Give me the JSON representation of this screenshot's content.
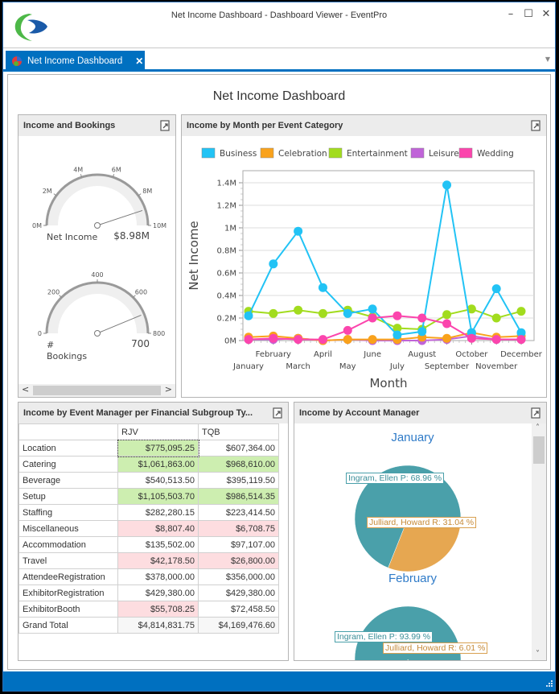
{
  "window": {
    "title": "Net Income Dashboard - Dashboard Viewer - EventPro",
    "minimize_label": "–",
    "maximize_label": "☐",
    "close_label": "✕"
  },
  "tabs": [
    {
      "label": "Net Income Dashboard",
      "close_label": "✕",
      "icon": "pie-chart-icon"
    }
  ],
  "tab_menu_label": "▼",
  "dashboard": {
    "title": "Net Income Dashboard"
  },
  "colors": {
    "accent": "#0070c0",
    "business": "#22c3f5",
    "celebration": "#f9a21c",
    "entertainment": "#a2dc1e",
    "leisure": "#c064d8",
    "wedding": "#fb45ad",
    "pie_ingram": "#4aa0aa",
    "pie_julliard": "#e6a751",
    "cell_high": "#cdeeb0",
    "cell_low": "#fddde0"
  },
  "gauges_panel": {
    "title": "Income and Bookings",
    "gauges": [
      {
        "label": "Net Income",
        "value": 8.98,
        "value_label": "$8.98M",
        "min": 0,
        "max": 10,
        "ticks": [
          "0M",
          "2M",
          "4M",
          "6M",
          "8M",
          "10M"
        ]
      },
      {
        "label_line1": "#",
        "label_line2": "Bookings",
        "value": 700,
        "value_label": "700",
        "min": 0,
        "max": 800,
        "ticks": [
          "0",
          "200",
          "400",
          "600",
          "800"
        ]
      }
    ],
    "scroll_left": "<",
    "scroll_right": ">"
  },
  "chart_data": {
    "type": "line",
    "title": "Income by Month per Event Category",
    "xlabel": "Month",
    "ylabel": "Net Income",
    "ylim": [
      0,
      1.4
    ],
    "y_unit": "M",
    "yticks": [
      "0M",
      "0.2M",
      "0.4M",
      "0.6M",
      "0.8M",
      "1M",
      "1.2M",
      "1.4M"
    ],
    "grid": true,
    "legend_position": "top",
    "categories": [
      "January",
      "February",
      "March",
      "April",
      "May",
      "June",
      "July",
      "August",
      "September",
      "October",
      "November",
      "December"
    ],
    "series": [
      {
        "name": "Business",
        "color": "#22c3f5",
        "values": [
          0.22,
          0.68,
          0.97,
          0.47,
          0.24,
          0.28,
          0.05,
          0.08,
          1.38,
          0.07,
          0.46,
          0.07
        ]
      },
      {
        "name": "Celebration",
        "color": "#f9a21c",
        "values": [
          0.03,
          0.04,
          0.02,
          0.0,
          0.01,
          0.01,
          0.01,
          0.03,
          0.02,
          0.07,
          0.03,
          0.04
        ]
      },
      {
        "name": "Entertainment",
        "color": "#a2dc1e",
        "values": [
          0.26,
          0.24,
          0.27,
          0.24,
          0.27,
          0.21,
          0.11,
          0.1,
          0.23,
          0.28,
          0.2,
          0.26
        ]
      },
      {
        "name": "Leisure",
        "color": "#c064d8",
        "values": [
          0.01,
          0.01,
          0.02,
          0.0,
          0.01,
          0.0,
          0.0,
          0.0,
          0.01,
          0.04,
          0.01,
          0.01
        ]
      },
      {
        "name": "Wedding",
        "color": "#fb45ad",
        "values": [
          0.01,
          0.02,
          0.01,
          0.01,
          0.09,
          0.2,
          0.22,
          0.2,
          0.15,
          0.02,
          0.01,
          0.01
        ]
      }
    ]
  },
  "pivot_panel": {
    "title": "Income by Event Manager per Financial Subgroup Ty...",
    "columns": [
      "RJV",
      "TQB"
    ],
    "rows": [
      {
        "label": "Location",
        "values": [
          "$775,095.25",
          "$607,364.00"
        ],
        "status": [
          "high",
          "none"
        ]
      },
      {
        "label": "Catering",
        "values": [
          "$1,061,863.00",
          "$968,610.00"
        ],
        "status": [
          "high",
          "high"
        ]
      },
      {
        "label": "Beverage",
        "values": [
          "$540,513.50",
          "$395,119.50"
        ],
        "status": [
          "none",
          "none"
        ]
      },
      {
        "label": "Setup",
        "values": [
          "$1,105,503.70",
          "$986,514.35"
        ],
        "status": [
          "high",
          "high"
        ]
      },
      {
        "label": "Staffing",
        "values": [
          "$282,280.15",
          "$223,414.50"
        ],
        "status": [
          "none",
          "none"
        ]
      },
      {
        "label": "Miscellaneous",
        "values": [
          "$8,807.40",
          "$6,708.75"
        ],
        "status": [
          "low",
          "low"
        ]
      },
      {
        "label": "Accommodation",
        "values": [
          "$135,502.00",
          "$97,107.00"
        ],
        "status": [
          "none",
          "none"
        ]
      },
      {
        "label": "Travel",
        "values": [
          "$42,178.50",
          "$26,800.00"
        ],
        "status": [
          "low",
          "low"
        ]
      },
      {
        "label": "AttendeeRegistration",
        "values": [
          "$378,000.00",
          "$356,000.00"
        ],
        "status": [
          "none",
          "none"
        ]
      },
      {
        "label": "ExhibitorRegistration",
        "values": [
          "$429,380.00",
          "$429,380.00"
        ],
        "status": [
          "none",
          "none"
        ]
      },
      {
        "label": "ExhibitorBooth",
        "values": [
          "$55,708.25",
          "$72,458.50"
        ],
        "status": [
          "low",
          "none"
        ]
      },
      {
        "label": "Grand Total",
        "values": [
          "$4,814,831.75",
          "$4,169,476.60"
        ],
        "status": [
          "total",
          "total"
        ]
      }
    ]
  },
  "pie_panel": {
    "title": "Income by Account Manager",
    "pies": [
      {
        "month": "January",
        "slices": [
          {
            "name": "Ingram, Ellen P",
            "percent": 68.96,
            "label": "Ingram, Ellen P: 68.96 %"
          },
          {
            "name": "Julliard, Howard R",
            "percent": 31.04,
            "label": "Julliard, Howard R: 31.04 %"
          }
        ]
      },
      {
        "month": "February",
        "slices": [
          {
            "name": "Ingram, Ellen P",
            "percent": 93.99,
            "label": "Ingram, Ellen P: 93.99 %"
          },
          {
            "name": "Julliard, Howard R",
            "percent": 6.01,
            "label": "Julliard, Howard R: 6.01 %"
          }
        ]
      }
    ],
    "scroll_up": "˄",
    "scroll_down": "˅"
  }
}
